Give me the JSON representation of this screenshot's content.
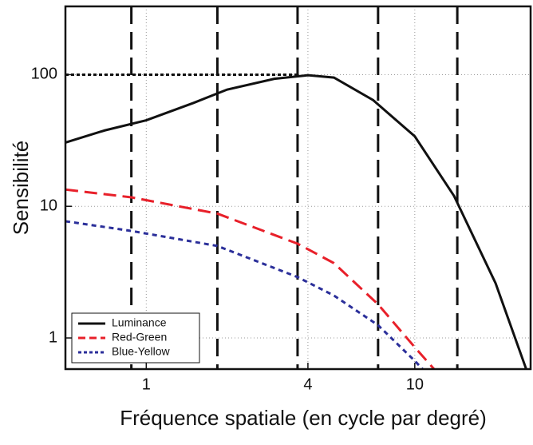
{
  "chart_data": {
    "type": "line",
    "xlabel": "Fréquence spatiale (en cycle par degré)",
    "ylabel": "Sensibilité",
    "xscale": "log",
    "yscale": "log",
    "xlim": [
      0.5,
      27
    ],
    "ylim": [
      0.58,
      330
    ],
    "xticks": [
      1,
      4,
      10
    ],
    "yticks": [
      1,
      10,
      100
    ],
    "grid": true,
    "legend": "lower left",
    "vlines": [
      0.88,
      1.84,
      3.66,
      7.3,
      14.4
    ],
    "hline": {
      "y": 100,
      "x_end": 3.66
    },
    "series": [
      {
        "name": "Luminance",
        "color": "#111111",
        "style": "solid",
        "x": [
          0.5,
          0.7,
          1,
          1.5,
          2,
          3,
          4,
          5,
          7,
          10,
          14,
          20,
          26
        ],
        "values": [
          30.5,
          37.7,
          45,
          61,
          77,
          93,
          99,
          95,
          64,
          34,
          12,
          2.6,
          0.58
        ]
      },
      {
        "name": "Red-Green",
        "color": "#e8202a",
        "style": "dashed",
        "x": [
          0.5,
          0.88,
          1.84,
          3.66,
          5,
          7.3,
          10,
          11.8
        ],
        "values": [
          13.4,
          11.7,
          8.8,
          5.2,
          3.7,
          1.8,
          0.85,
          0.58
        ]
      },
      {
        "name": "Blue-Yellow",
        "color": "#2b2f9a",
        "style": "dotted",
        "x": [
          0.5,
          0.88,
          1.84,
          3.66,
          5,
          7.3,
          10,
          10.7
        ],
        "values": [
          7.7,
          6.5,
          5.0,
          2.9,
          2.1,
          1.25,
          0.67,
          0.58
        ]
      }
    ]
  }
}
